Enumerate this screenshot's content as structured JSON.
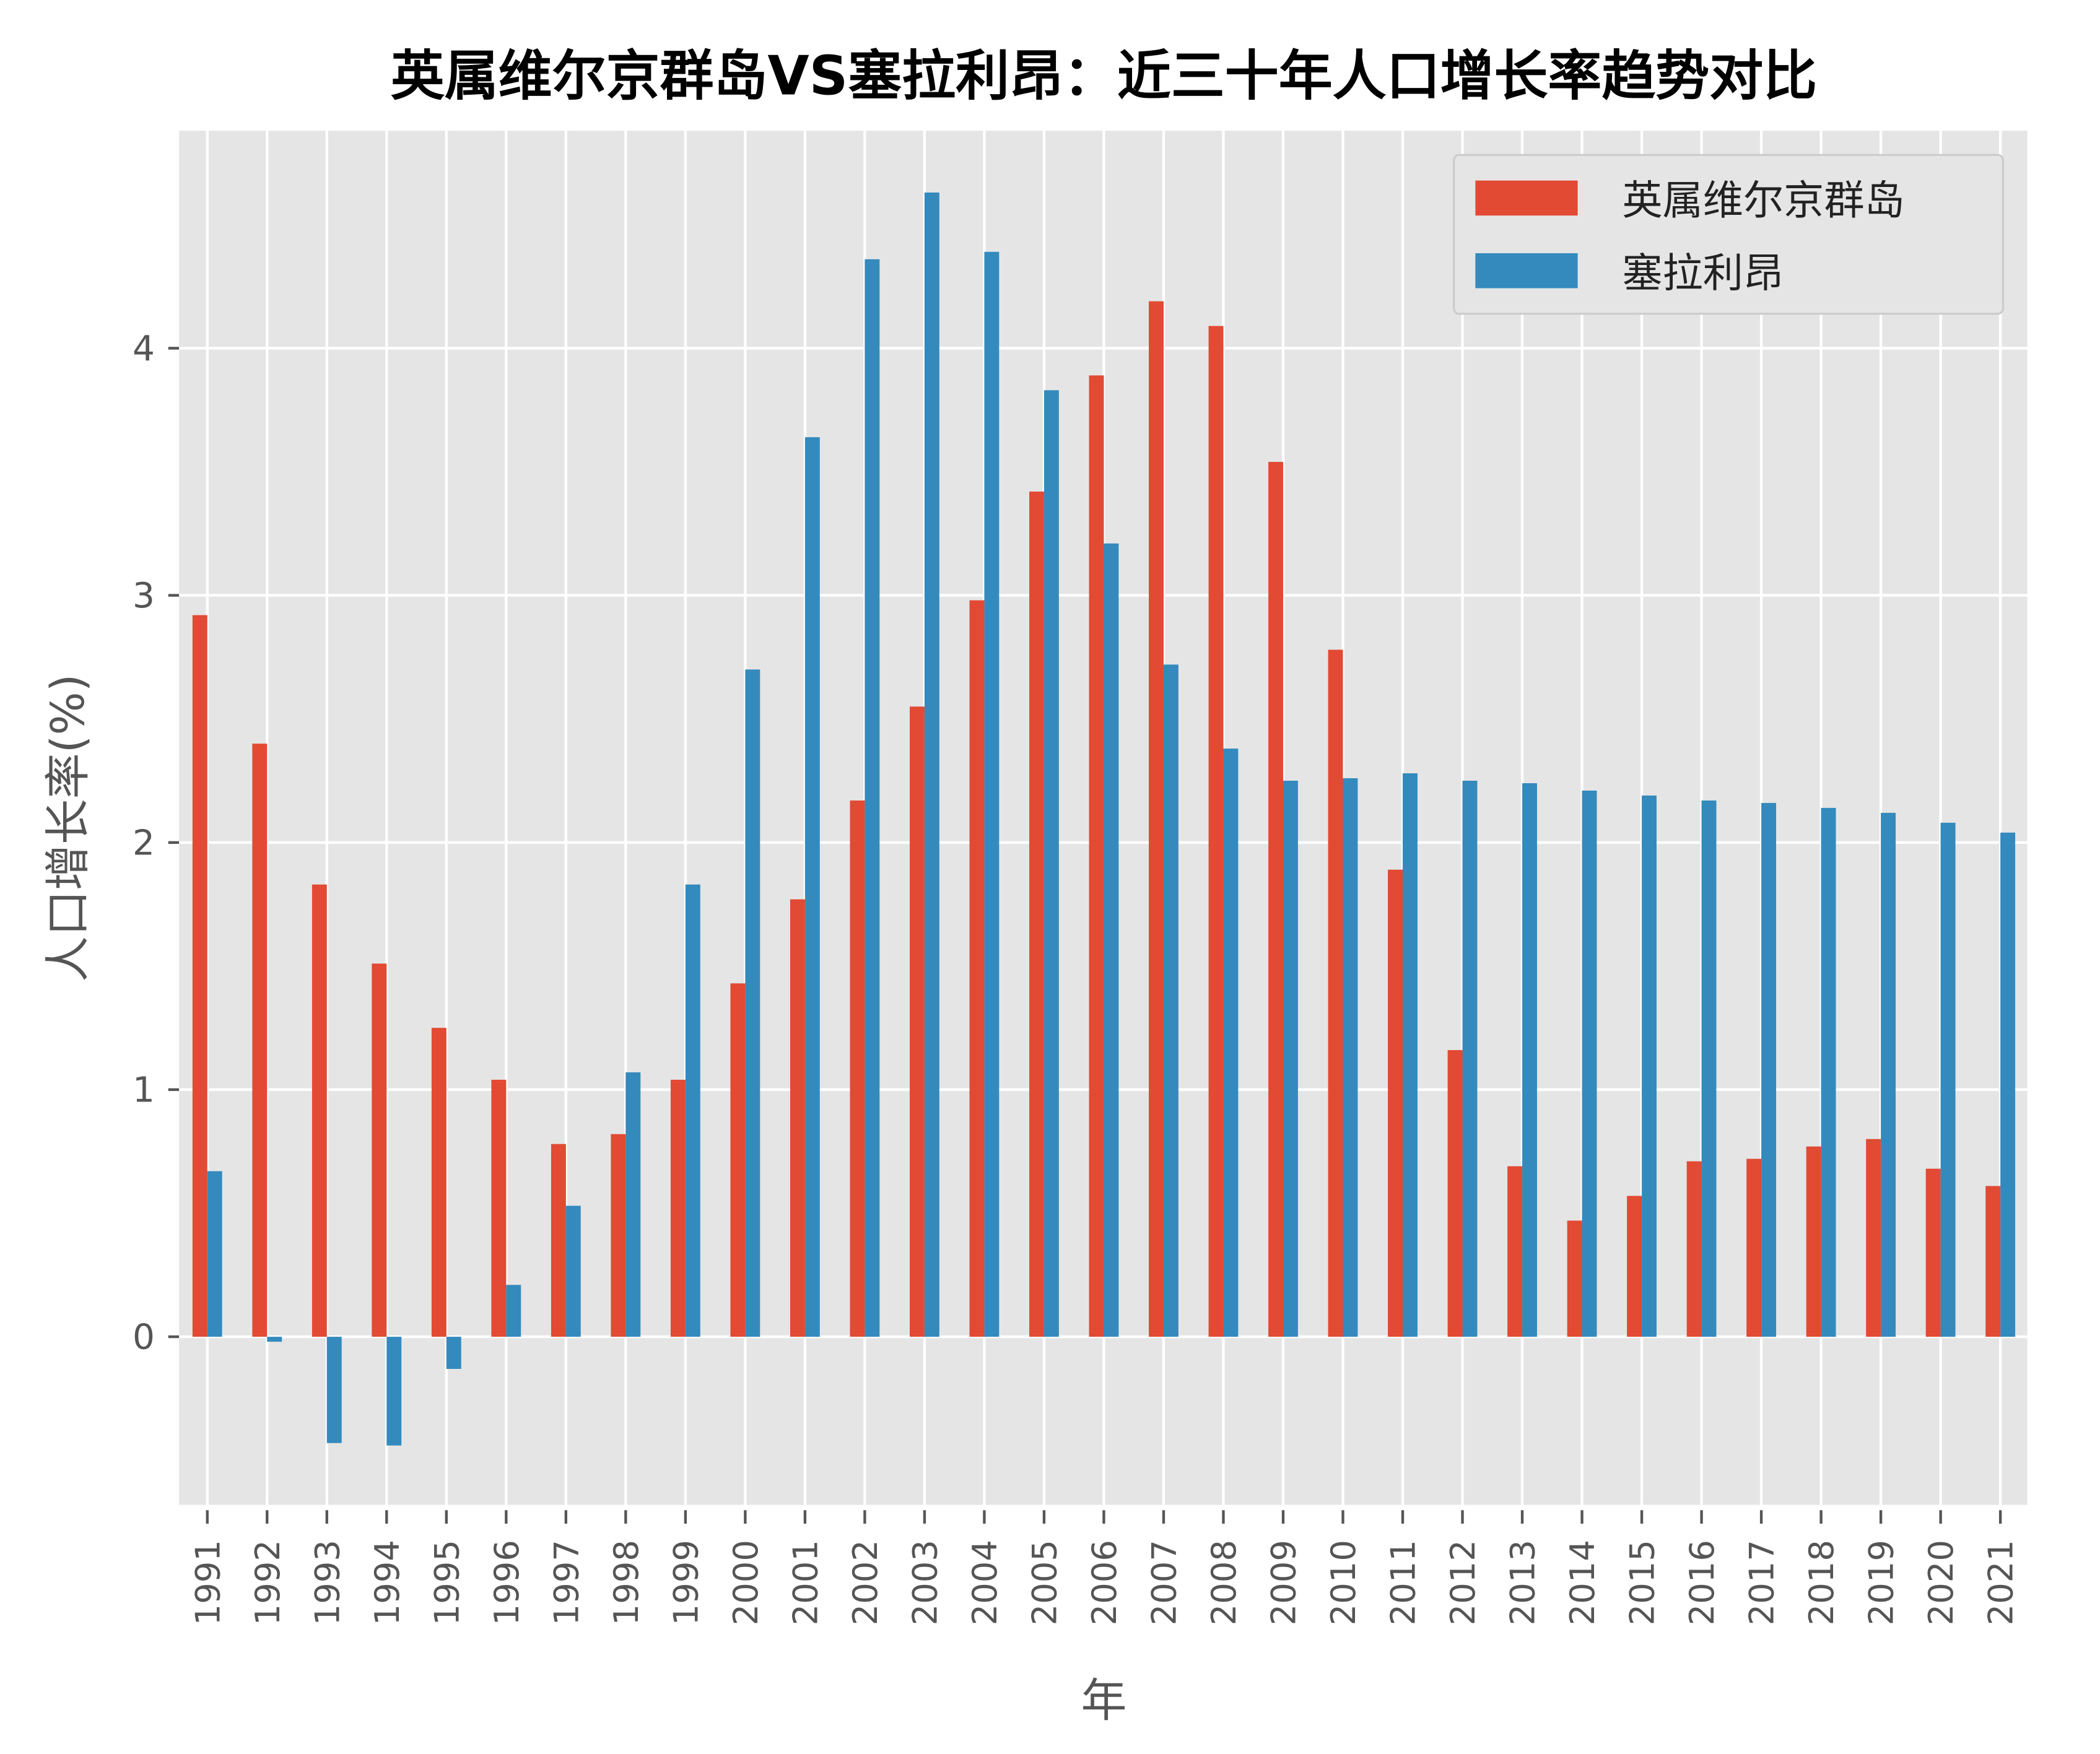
{
  "chart_data": {
    "type": "bar",
    "title": "英属维尔京群岛VS塞拉利昂：近三十年人口增长率趋势对比",
    "xlabel": "年",
    "ylabel": "人口增长率(%)",
    "ylim": [
      -0.68,
      4.88
    ],
    "yticks": [
      0,
      1,
      2,
      3,
      4
    ],
    "grid": true,
    "legend": "top-right",
    "categories": [
      "1991",
      "1992",
      "1993",
      "1994",
      "1995",
      "1996",
      "1997",
      "1998",
      "1999",
      "2000",
      "2001",
      "2002",
      "2003",
      "2004",
      "2005",
      "2006",
      "2007",
      "2008",
      "2009",
      "2010",
      "2011",
      "2012",
      "2013",
      "2014",
      "2015",
      "2016",
      "2017",
      "2018",
      "2019",
      "2020",
      "2021"
    ],
    "series": [
      {
        "name": "英属维尔京群岛",
        "color": "#E24A33",
        "values": [
          2.92,
          2.4,
          1.83,
          1.51,
          1.25,
          1.04,
          0.78,
          0.82,
          1.04,
          1.43,
          1.77,
          2.17,
          2.55,
          2.98,
          3.42,
          3.89,
          4.19,
          4.09,
          3.54,
          2.78,
          1.89,
          1.16,
          0.69,
          0.47,
          0.57,
          0.71,
          0.72,
          0.77,
          0.8,
          0.68,
          0.61
        ]
      },
      {
        "name": "塞拉利昂",
        "color": "#348ABD",
        "values": [
          0.67,
          -0.02,
          -0.43,
          -0.44,
          -0.13,
          0.21,
          0.53,
          1.07,
          1.83,
          2.7,
          3.64,
          4.36,
          4.63,
          4.39,
          3.83,
          3.21,
          2.72,
          2.38,
          2.25,
          2.26,
          2.28,
          2.25,
          2.24,
          2.21,
          2.19,
          2.17,
          2.16,
          2.14,
          2.12,
          2.08,
          2.04
        ]
      }
    ]
  }
}
